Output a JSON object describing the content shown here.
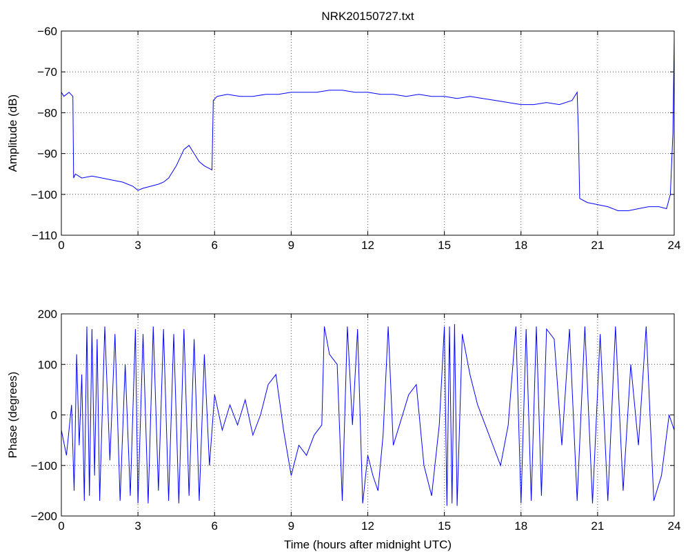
{
  "title": "NRK20150727.txt",
  "chart_data": [
    {
      "type": "line",
      "title": "NRK20150727.txt",
      "xlabel": "",
      "ylabel": "Amplitude (dB)",
      "xlim": [
        0,
        24
      ],
      "ylim": [
        -110,
        -60
      ],
      "xticks": [
        0,
        3,
        6,
        9,
        12,
        15,
        18,
        21,
        24
      ],
      "yticks": [
        -110,
        -100,
        -90,
        -80,
        -70,
        -60
      ],
      "grid": true,
      "color": "#0000ff",
      "series": [
        {
          "x": [
            0,
            0.1,
            0.3,
            0.45,
            0.48,
            0.55,
            0.8,
            1.2,
            1.6,
            2.0,
            2.4,
            2.8,
            3.0,
            3.2,
            3.5,
            3.8,
            4.0,
            4.2,
            4.5,
            4.8,
            5.0,
            5.2,
            5.4,
            5.6,
            5.9,
            5.95,
            6.1,
            6.5,
            7.0,
            7.5,
            8.0,
            8.5,
            9.0,
            9.5,
            10.0,
            10.5,
            11.0,
            11.5,
            12.0,
            12.5,
            13.0,
            13.5,
            14.0,
            14.5,
            15.0,
            15.5,
            16.0,
            16.5,
            17.0,
            17.5,
            18.0,
            18.5,
            19.0,
            19.5,
            20.0,
            20.2,
            20.25,
            20.3,
            20.6,
            21.0,
            21.4,
            21.8,
            22.2,
            22.6,
            23.0,
            23.4,
            23.7,
            23.85,
            23.95,
            24.0
          ],
          "y": [
            -75,
            -76,
            -75,
            -76,
            -96,
            -95,
            -96,
            -95.5,
            -96,
            -96.5,
            -97,
            -98,
            -99,
            -98.5,
            -98,
            -97.5,
            -97,
            -96,
            -93,
            -89,
            -88,
            -90,
            -92,
            -93,
            -94,
            -77,
            -76,
            -75.5,
            -76,
            -76,
            -75.5,
            -75.5,
            -75,
            -75,
            -75,
            -74.5,
            -74.5,
            -75,
            -75,
            -75.5,
            -75.5,
            -76,
            -75.5,
            -76,
            -76,
            -76.5,
            -76,
            -76.5,
            -77,
            -77.5,
            -78,
            -78,
            -77.5,
            -78,
            -77,
            -75,
            -85,
            -101,
            -102,
            -102.5,
            -103,
            -104,
            -104,
            -103.5,
            -103,
            -103,
            -103.5,
            -100,
            -85,
            -62
          ]
        }
      ]
    },
    {
      "type": "line",
      "title": "",
      "xlabel": "Time (hours after midnight UTC)",
      "ylabel": "Phase (degrees)",
      "xlim": [
        0,
        24
      ],
      "ylim": [
        -200,
        200
      ],
      "xticks": [
        0,
        3,
        6,
        9,
        12,
        15,
        18,
        21,
        24
      ],
      "yticks": [
        -200,
        -100,
        0,
        100,
        200
      ],
      "grid": true,
      "color": "#0000ff",
      "series": [
        {
          "x": [
            0,
            0.2,
            0.4,
            0.5,
            0.6,
            0.7,
            0.8,
            0.9,
            1.0,
            1.1,
            1.2,
            1.3,
            1.4,
            1.5,
            1.7,
            1.9,
            2.1,
            2.3,
            2.5,
            2.7,
            2.9,
            3.0,
            3.2,
            3.4,
            3.6,
            3.8,
            4.0,
            4.2,
            4.4,
            4.6,
            4.8,
            5.0,
            5.2,
            5.4,
            5.6,
            5.8,
            6.0,
            6.3,
            6.6,
            6.9,
            7.2,
            7.5,
            7.8,
            8.1,
            8.4,
            8.7,
            9.0,
            9.3,
            9.6,
            9.9,
            10.2,
            10.3,
            10.5,
            10.8,
            11.0,
            11.2,
            11.4,
            11.6,
            11.8,
            12.0,
            12.2,
            12.4,
            12.6,
            12.8,
            13.0,
            13.3,
            13.6,
            13.9,
            14.2,
            14.5,
            14.8,
            15.0,
            15.1,
            15.2,
            15.3,
            15.4,
            15.5,
            15.7,
            16.0,
            16.3,
            16.6,
            16.9,
            17.2,
            17.5,
            17.8,
            18.0,
            18.2,
            18.4,
            18.6,
            18.8,
            19.0,
            19.3,
            19.6,
            19.9,
            20.2,
            20.5,
            20.8,
            21.1,
            21.4,
            21.7,
            22.0,
            22.3,
            22.6,
            22.9,
            23.2,
            23.5,
            23.8,
            24.0
          ],
          "y": [
            -30,
            -80,
            20,
            -150,
            120,
            -60,
            80,
            -170,
            175,
            -160,
            170,
            -120,
            150,
            -170,
            175,
            -90,
            160,
            -170,
            100,
            -160,
            170,
            -175,
            160,
            -175,
            175,
            -150,
            170,
            -170,
            160,
            -175,
            170,
            -160,
            150,
            -170,
            120,
            -100,
            40,
            -30,
            20,
            -20,
            30,
            -40,
            0,
            60,
            80,
            -30,
            -120,
            -60,
            -80,
            -40,
            -20,
            175,
            120,
            100,
            -170,
            175,
            -20,
            170,
            -175,
            -80,
            -120,
            -150,
            -40,
            175,
            -60,
            -10,
            40,
            60,
            -100,
            -160,
            -20,
            175,
            -180,
            175,
            -175,
            180,
            -180,
            160,
            80,
            20,
            -20,
            -60,
            -100,
            -20,
            175,
            -175,
            170,
            -170,
            175,
            -160,
            170,
            150,
            -60,
            170,
            -170,
            175,
            -175,
            160,
            -170,
            175,
            -150,
            100,
            -60,
            175,
            -170,
            -120,
            0,
            -30
          ]
        }
      ]
    }
  ]
}
